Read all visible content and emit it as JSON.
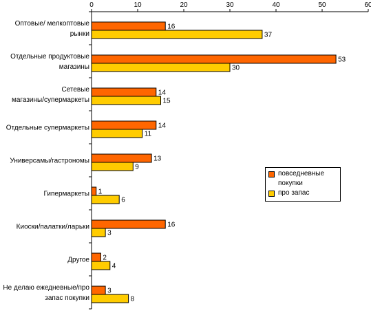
{
  "chart_data": {
    "type": "bar",
    "orientation": "horizontal",
    "categories": [
      "Оптовые/ мелкоптовые рынки",
      "Отдельные продуктовые магазины",
      "Сетевые магазины/супермаркеты",
      "Отдельные супермаркеты",
      "Универсамы/гастрономы",
      "Гипермаркеты",
      "Киоски/палатки/ларьки",
      "Другое",
      "Не делаю ежедневные/про запас покупки"
    ],
    "category_lines": [
      [
        "Оптовые/ мелкоптовые",
        "рынки"
      ],
      [
        "Отдельные продуктовые",
        "магазины"
      ],
      [
        "Сетевые",
        "магазины/супермаркеты"
      ],
      [
        "Отдельные супермаркеты"
      ],
      [
        "Универсамы/гастрономы"
      ],
      [
        "Гипермаркеты"
      ],
      [
        "Киоски/палатки/ларьки"
      ],
      [
        "Другое"
      ],
      [
        "Не делаю ежедневные/про",
        "запас покупки"
      ]
    ],
    "series": [
      {
        "name": "повседневные покупки",
        "color": "#ff6600",
        "values": [
          16,
          53,
          14,
          14,
          13,
          1,
          16,
          2,
          3
        ]
      },
      {
        "name": "про запас",
        "color": "#ffcc00",
        "values": [
          37,
          30,
          15,
          11,
          9,
          6,
          3,
          4,
          8
        ]
      }
    ],
    "xlim": [
      0,
      60
    ],
    "xticks": [
      0,
      10,
      20,
      30,
      40,
      50,
      60
    ],
    "axis_position": "top",
    "grid": false,
    "legend_position": "right",
    "legend_lines": [
      [
        "повседневные",
        "покупки"
      ],
      [
        "про запас"
      ]
    ]
  }
}
